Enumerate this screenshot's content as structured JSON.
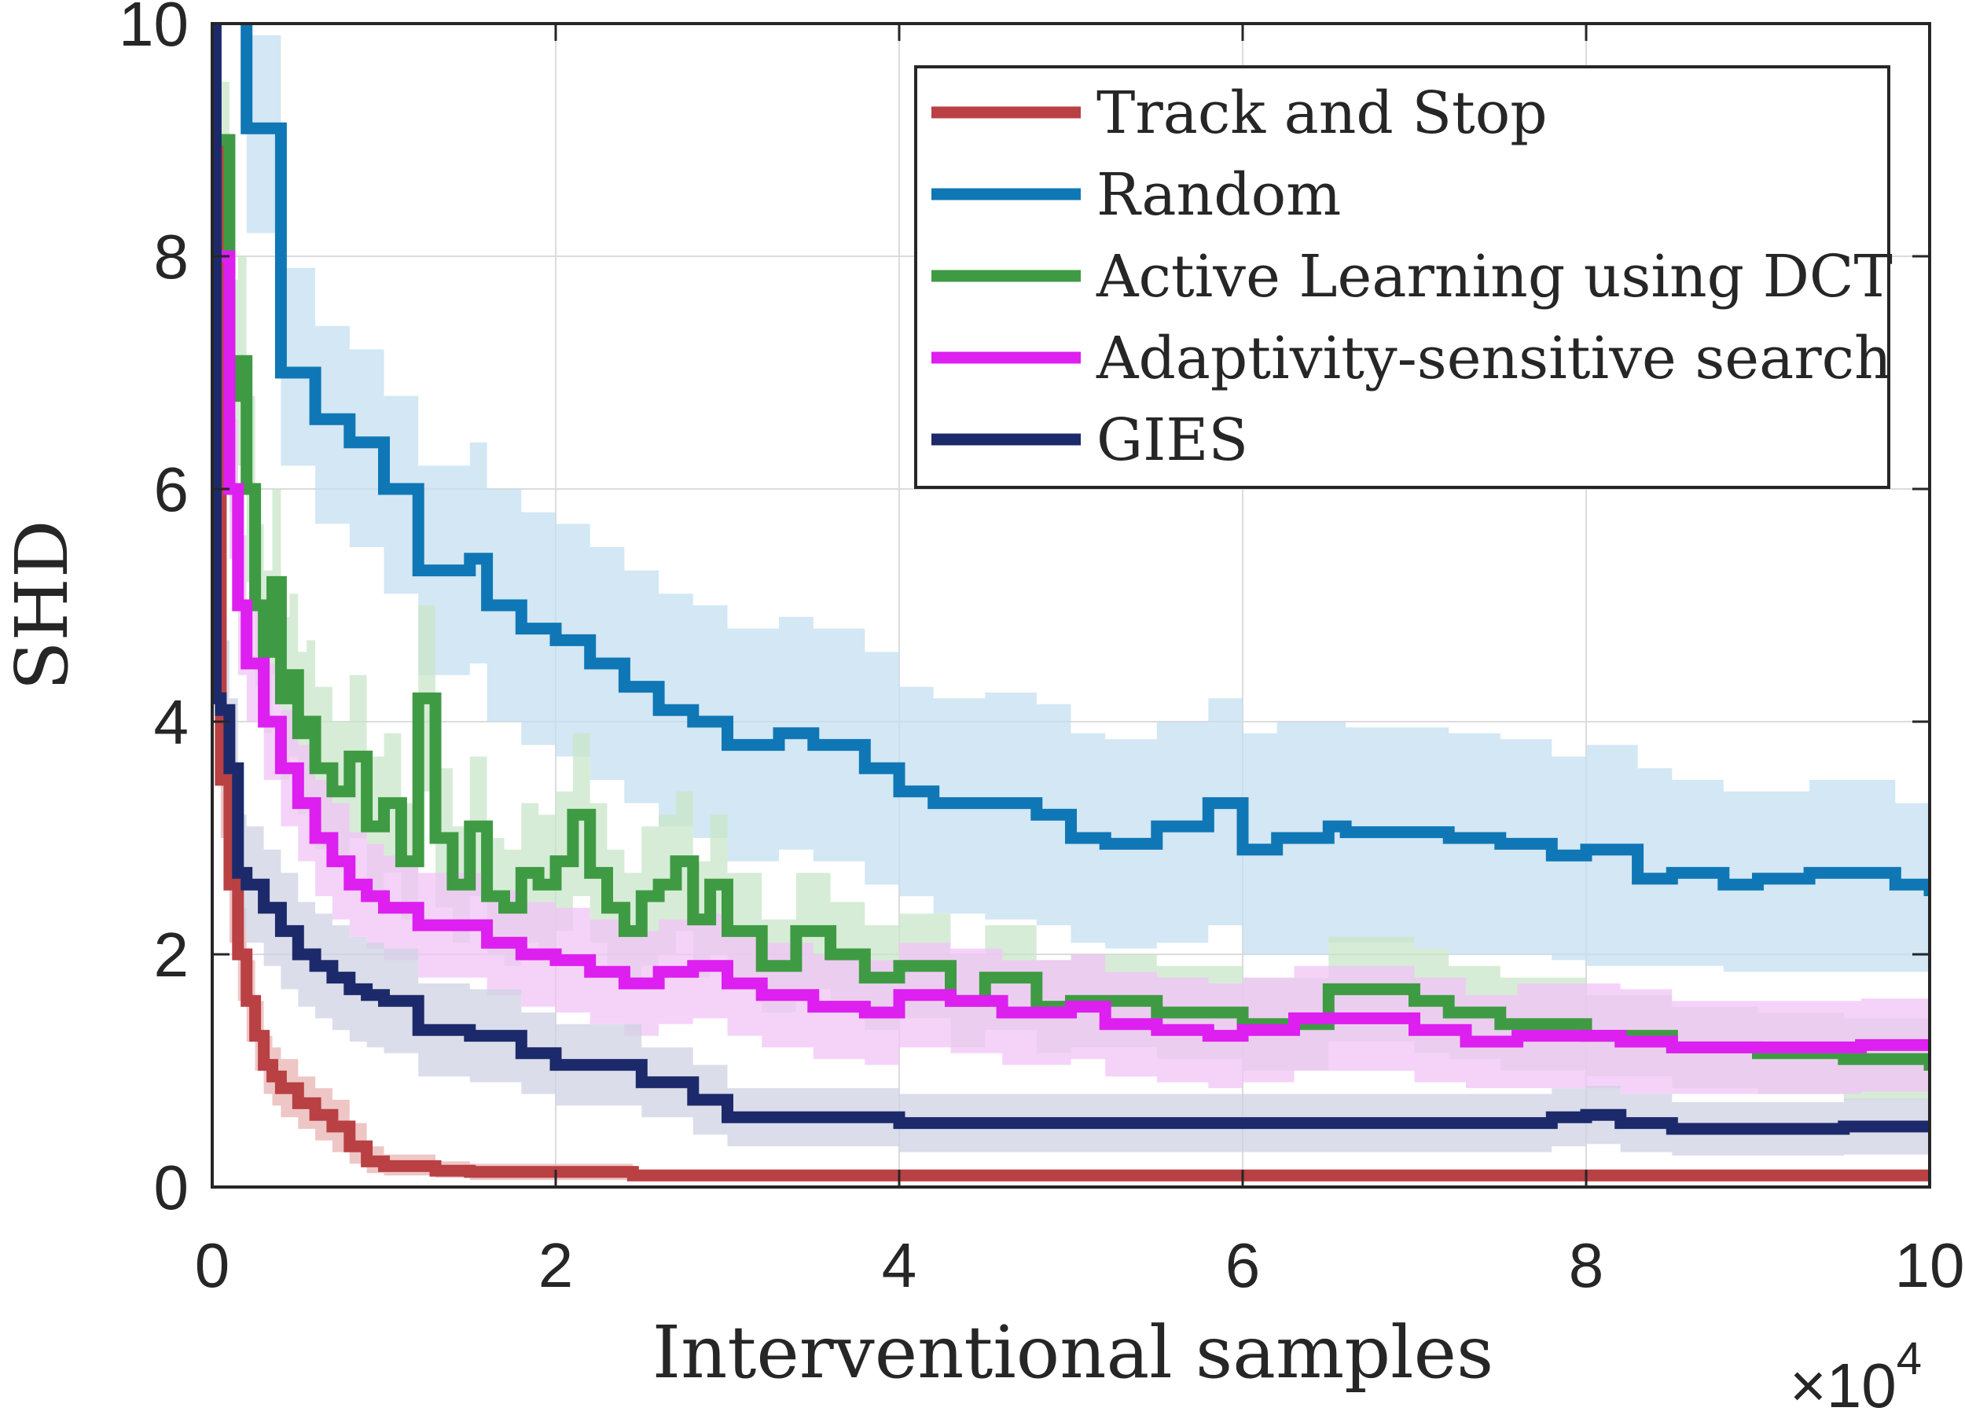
{
  "chart_data": {
    "type": "line",
    "title": "",
    "xlabel": "Interventional samples",
    "ylabel": "SHD",
    "x_multiplier": "×10",
    "x_multiplier_exponent": "4",
    "xlim": [
      0,
      10
    ],
    "ylim": [
      0,
      10
    ],
    "xticks": [
      "0",
      "2",
      "4",
      "6",
      "8",
      "10"
    ],
    "yticks": [
      "0",
      "2",
      "4",
      "6",
      "8",
      "10"
    ],
    "grid": true,
    "legend_position": "top-right",
    "series": [
      {
        "name": "Track and Stop",
        "color": "#b94043",
        "band_color": "#e8b3b3",
        "x": [
          0,
          0.05,
          0.1,
          0.15,
          0.2,
          0.25,
          0.3,
          0.35,
          0.4,
          0.5,
          0.6,
          0.7,
          0.8,
          0.9,
          1.0,
          1.2,
          1.3,
          1.5,
          2.0,
          2.4,
          2.45,
          10
        ],
        "y": [
          9.0,
          3.5,
          2.6,
          2.0,
          1.6,
          1.3,
          1.05,
          0.95,
          0.85,
          0.72,
          0.62,
          0.52,
          0.35,
          0.22,
          0.18,
          0.18,
          0.14,
          0.13,
          0.13,
          0.13,
          0.1,
          0.1
        ],
        "lower": [
          8.5,
          3.0,
          2.1,
          1.6,
          1.25,
          1.0,
          0.8,
          0.7,
          0.6,
          0.5,
          0.4,
          0.3,
          0.2,
          0.12,
          0.1,
          0.1,
          0.08,
          0.06,
          0.06,
          0.06,
          0.05,
          0.05
        ],
        "upper": [
          9.5,
          4.0,
          3.1,
          2.4,
          1.95,
          1.6,
          1.3,
          1.2,
          1.1,
          0.95,
          0.85,
          0.75,
          0.55,
          0.35,
          0.28,
          0.28,
          0.22,
          0.2,
          0.2,
          0.2,
          0.15,
          0.15
        ]
      },
      {
        "name": "Random",
        "color": "#0f77b6",
        "band_color": "#c4dff0",
        "x": [
          0.2,
          0.2,
          0.2,
          0.4,
          0.4,
          0.6,
          0.8,
          1.0,
          1.2,
          1.5,
          1.6,
          1.8,
          2.0,
          2.2,
          2.4,
          2.6,
          2.8,
          3.0,
          3.3,
          3.5,
          3.8,
          4.0,
          4.2,
          4.5,
          4.8,
          5.0,
          5.2,
          5.5,
          5.8,
          6.0,
          6.0,
          6.2,
          6.5,
          6.6,
          7.0,
          7.2,
          7.5,
          7.8,
          8.0,
          8.3,
          8.5,
          8.8,
          9.0,
          9.3,
          9.5,
          9.8,
          10
        ],
        "y": [
          10.0,
          10.0,
          9.1,
          9.1,
          7.0,
          6.6,
          6.4,
          6.0,
          5.3,
          5.4,
          5.0,
          4.8,
          4.7,
          4.5,
          4.3,
          4.1,
          4.0,
          3.8,
          3.9,
          3.8,
          3.6,
          3.4,
          3.3,
          3.3,
          3.2,
          3.0,
          2.95,
          3.1,
          3.3,
          3.3,
          2.9,
          3.0,
          3.1,
          3.05,
          3.05,
          3.0,
          2.95,
          2.85,
          2.9,
          2.65,
          2.7,
          2.6,
          2.65,
          2.7,
          2.7,
          2.6,
          2.5
        ],
        "lower": [
          9.0,
          9.0,
          8.2,
          8.2,
          6.2,
          5.7,
          5.5,
          5.1,
          4.4,
          4.5,
          4.0,
          3.8,
          3.7,
          3.5,
          3.3,
          3.1,
          3.0,
          2.8,
          2.9,
          2.8,
          2.6,
          2.5,
          2.35,
          2.3,
          2.25,
          2.1,
          2.05,
          2.1,
          2.25,
          2.25,
          2.0,
          2.0,
          2.1,
          2.1,
          2.05,
          2.0,
          2.0,
          1.95,
          1.9,
          1.9,
          1.9,
          1.85,
          1.85,
          1.85,
          1.85,
          1.85,
          1.8
        ],
        "upper": [
          10.0,
          10.0,
          9.9,
          9.9,
          7.9,
          7.4,
          7.2,
          6.8,
          6.2,
          6.4,
          6.0,
          5.8,
          5.7,
          5.5,
          5.3,
          5.1,
          5.0,
          4.8,
          4.9,
          4.8,
          4.6,
          4.3,
          4.2,
          4.25,
          4.15,
          3.9,
          3.85,
          4.0,
          4.2,
          4.2,
          3.9,
          4.0,
          4.0,
          3.95,
          3.95,
          3.9,
          3.85,
          3.7,
          3.8,
          3.6,
          3.5,
          3.4,
          3.4,
          3.5,
          3.5,
          3.3,
          3.2
        ]
      },
      {
        "name": "Active Learning using DCT",
        "color": "#3f9b43",
        "band_color": "#c9e6c9",
        "x": [
          0.05,
          0.1,
          0.15,
          0.2,
          0.25,
          0.3,
          0.35,
          0.4,
          0.45,
          0.5,
          0.55,
          0.6,
          0.7,
          0.8,
          0.9,
          1.0,
          1.1,
          1.2,
          1.3,
          1.4,
          1.5,
          1.6,
          1.7,
          1.8,
          1.9,
          2.0,
          2.1,
          2.2,
          2.3,
          2.4,
          2.5,
          2.6,
          2.7,
          2.8,
          2.9,
          3.0,
          3.2,
          3.4,
          3.6,
          3.8,
          4.0,
          4.3,
          4.5,
          4.8,
          5.0,
          5.5,
          6.0,
          6.5,
          7.0,
          7.2,
          7.5,
          8.0,
          8.5,
          9.0,
          9.5,
          10
        ],
        "y": [
          9.0,
          6.8,
          7.1,
          6.0,
          5.0,
          4.6,
          5.2,
          4.2,
          4.4,
          3.9,
          4.0,
          3.6,
          3.4,
          3.7,
          3.1,
          3.3,
          2.8,
          4.2,
          3.0,
          2.6,
          3.1,
          2.5,
          2.4,
          2.7,
          2.6,
          2.8,
          3.2,
          2.7,
          2.4,
          2.2,
          2.5,
          2.6,
          2.8,
          2.3,
          2.6,
          2.2,
          1.9,
          2.2,
          2.0,
          1.8,
          1.9,
          1.6,
          1.8,
          1.55,
          1.6,
          1.5,
          1.4,
          1.7,
          1.6,
          1.5,
          1.4,
          1.3,
          1.2,
          1.15,
          1.1,
          1.0
        ],
        "lower": [
          8.5,
          5.8,
          6.2,
          5.2,
          4.3,
          3.9,
          4.4,
          3.5,
          3.7,
          3.2,
          3.3,
          2.9,
          2.8,
          3.0,
          2.5,
          2.7,
          2.3,
          3.4,
          2.4,
          2.1,
          2.5,
          2.0,
          1.9,
          2.1,
          2.0,
          2.2,
          2.5,
          2.1,
          1.9,
          1.7,
          1.9,
          2.0,
          2.2,
          1.8,
          2.0,
          1.7,
          1.5,
          1.7,
          1.55,
          1.35,
          1.45,
          1.2,
          1.35,
          1.15,
          1.2,
          1.1,
          1.0,
          1.25,
          1.15,
          1.1,
          1.0,
          0.95,
          0.85,
          0.8,
          0.75,
          0.7
        ],
        "upper": [
          9.5,
          7.8,
          8.0,
          6.8,
          5.7,
          5.3,
          6.0,
          4.9,
          5.1,
          4.6,
          4.7,
          4.3,
          4.0,
          4.4,
          3.7,
          3.9,
          3.3,
          5.0,
          3.6,
          3.1,
          3.7,
          3.0,
          2.9,
          3.3,
          3.2,
          3.4,
          3.9,
          3.3,
          2.9,
          2.7,
          3.1,
          3.2,
          3.4,
          2.8,
          3.2,
          2.7,
          2.3,
          2.7,
          2.45,
          2.25,
          2.35,
          2.0,
          2.25,
          1.95,
          2.0,
          1.9,
          1.8,
          2.15,
          2.05,
          1.9,
          1.8,
          1.65,
          1.55,
          1.5,
          1.45,
          1.3
        ]
      },
      {
        "name": "Adaptivity-sensitive search",
        "color": "#dd1ff0",
        "band_color": "#f1c4f7",
        "x": [
          0.05,
          0.1,
          0.15,
          0.2,
          0.3,
          0.4,
          0.5,
          0.6,
          0.7,
          0.8,
          0.9,
          1.0,
          1.2,
          1.4,
          1.6,
          1.8,
          2.0,
          2.2,
          2.4,
          2.6,
          2.8,
          3.0,
          3.2,
          3.5,
          3.8,
          4.0,
          4.3,
          4.6,
          5.0,
          5.2,
          5.5,
          5.8,
          6.0,
          6.3,
          6.6,
          7.0,
          7.3,
          7.6,
          8.0,
          8.2,
          8.5,
          8.8,
          9.0,
          9.3,
          9.6,
          10
        ],
        "y": [
          8.0,
          6.0,
          5.0,
          4.5,
          4.0,
          3.6,
          3.3,
          3.0,
          2.8,
          2.6,
          2.5,
          2.4,
          2.25,
          2.25,
          2.1,
          2.0,
          1.95,
          1.85,
          1.75,
          1.85,
          1.9,
          1.75,
          1.65,
          1.55,
          1.5,
          1.65,
          1.6,
          1.5,
          1.55,
          1.4,
          1.35,
          1.3,
          1.35,
          1.45,
          1.45,
          1.35,
          1.25,
          1.3,
          1.3,
          1.25,
          1.2,
          1.2,
          1.2,
          1.2,
          1.22,
          1.25
        ],
        "lower": [
          7.4,
          5.4,
          4.4,
          4.0,
          3.5,
          3.1,
          2.8,
          2.5,
          2.3,
          2.15,
          2.05,
          1.95,
          1.8,
          1.8,
          1.65,
          1.55,
          1.5,
          1.4,
          1.3,
          1.4,
          1.45,
          1.3,
          1.2,
          1.1,
          1.05,
          1.2,
          1.15,
          1.05,
          1.1,
          0.95,
          0.9,
          0.85,
          0.9,
          1.0,
          1.0,
          0.9,
          0.85,
          0.85,
          0.85,
          0.8,
          0.8,
          0.8,
          0.8,
          0.8,
          0.82,
          0.85
        ],
        "upper": [
          8.6,
          6.6,
          5.6,
          5.0,
          4.5,
          4.1,
          3.8,
          3.5,
          3.3,
          3.05,
          2.95,
          2.85,
          2.7,
          2.7,
          2.55,
          2.45,
          2.4,
          2.3,
          2.2,
          2.3,
          2.35,
          2.2,
          2.1,
          2.0,
          1.95,
          2.1,
          2.05,
          1.95,
          2.0,
          1.85,
          1.8,
          1.75,
          1.8,
          1.9,
          1.9,
          1.8,
          1.65,
          1.75,
          1.75,
          1.7,
          1.6,
          1.6,
          1.6,
          1.6,
          1.62,
          1.65
        ]
      },
      {
        "name": "GIES",
        "color": "#1c2a6b",
        "band_color": "#cfd1e3",
        "x": [
          0,
          0.02,
          0.05,
          0.1,
          0.15,
          0.2,
          0.3,
          0.4,
          0.5,
          0.6,
          0.7,
          0.8,
          0.9,
          1.0,
          1.2,
          1.5,
          1.8,
          2.0,
          2.5,
          2.8,
          3.0,
          3.5,
          4.0,
          4.5,
          5.0,
          6.0,
          7.0,
          7.5,
          7.8,
          8.0,
          8.2,
          8.5,
          9.0,
          9.5,
          10
        ],
        "y": [
          10.0,
          4.2,
          4.1,
          3.6,
          2.7,
          2.6,
          2.4,
          2.2,
          2.0,
          1.9,
          1.8,
          1.7,
          1.65,
          1.6,
          1.35,
          1.3,
          1.15,
          1.05,
          0.9,
          0.75,
          0.6,
          0.6,
          0.55,
          0.55,
          0.55,
          0.55,
          0.55,
          0.55,
          0.6,
          0.62,
          0.55,
          0.5,
          0.5,
          0.52,
          0.55
        ],
        "lower": [
          9.0,
          3.7,
          3.5,
          3.0,
          2.2,
          2.1,
          1.9,
          1.7,
          1.55,
          1.45,
          1.35,
          1.25,
          1.2,
          1.15,
          0.95,
          0.9,
          0.8,
          0.7,
          0.6,
          0.45,
          0.35,
          0.35,
          0.3,
          0.3,
          0.3,
          0.3,
          0.3,
          0.3,
          0.35,
          0.37,
          0.3,
          0.27,
          0.27,
          0.28,
          0.3
        ],
        "upper": [
          10.0,
          4.7,
          4.7,
          4.2,
          3.2,
          3.1,
          2.9,
          2.7,
          2.45,
          2.35,
          2.25,
          2.15,
          2.1,
          2.05,
          1.75,
          1.7,
          1.5,
          1.4,
          1.2,
          1.05,
          0.85,
          0.85,
          0.8,
          0.8,
          0.8,
          0.8,
          0.8,
          0.8,
          0.85,
          0.87,
          0.8,
          0.73,
          0.73,
          0.76,
          0.8
        ]
      }
    ]
  }
}
